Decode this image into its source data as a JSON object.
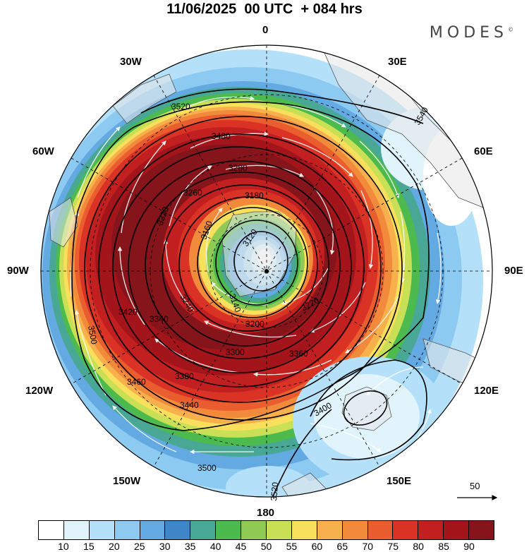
{
  "header": {
    "title": "11/06/2025  00 UTC  + 084 hrs",
    "brand": "MODES",
    "brand_mark": "©"
  },
  "map": {
    "projection": "polar stereographic (south pole)",
    "longitude_labels": [
      "0",
      "30E",
      "60E",
      "90E",
      "120E",
      "150E",
      "180",
      "150W",
      "120W",
      "90W",
      "60W",
      "30W"
    ],
    "contour_labels": [
      "3520",
      "3540",
      "3480",
      "3460",
      "3440",
      "3420",
      "3400",
      "3380",
      "3360",
      "3340",
      "3320",
      "3300",
      "3280",
      "3260",
      "3240",
      "3220",
      "3200",
      "3180",
      "3160",
      "3140",
      "3120",
      "3500"
    ],
    "vector_reference_value": "50",
    "colors": {
      "land": "#e6e6e6",
      "grid": "#000000",
      "contour": "#000000",
      "streamline": "#ffffff"
    }
  },
  "colorbar": {
    "colors": [
      "#ffffff",
      "#e1f4fc",
      "#b4e1f9",
      "#8ccaf1",
      "#63a9e2",
      "#3f86c8",
      "#48a895",
      "#4cba4c",
      "#8fca55",
      "#c8df56",
      "#f8e05d",
      "#f7b04c",
      "#f28a3c",
      "#e95d2e",
      "#da3325",
      "#c11f20",
      "#a3151a",
      "#86141b"
    ],
    "ticks": [
      "10",
      "15",
      "20",
      "25",
      "30",
      "35",
      "40",
      "45",
      "50",
      "55",
      "60",
      "65",
      "70",
      "75",
      "80",
      "85",
      "90"
    ]
  }
}
